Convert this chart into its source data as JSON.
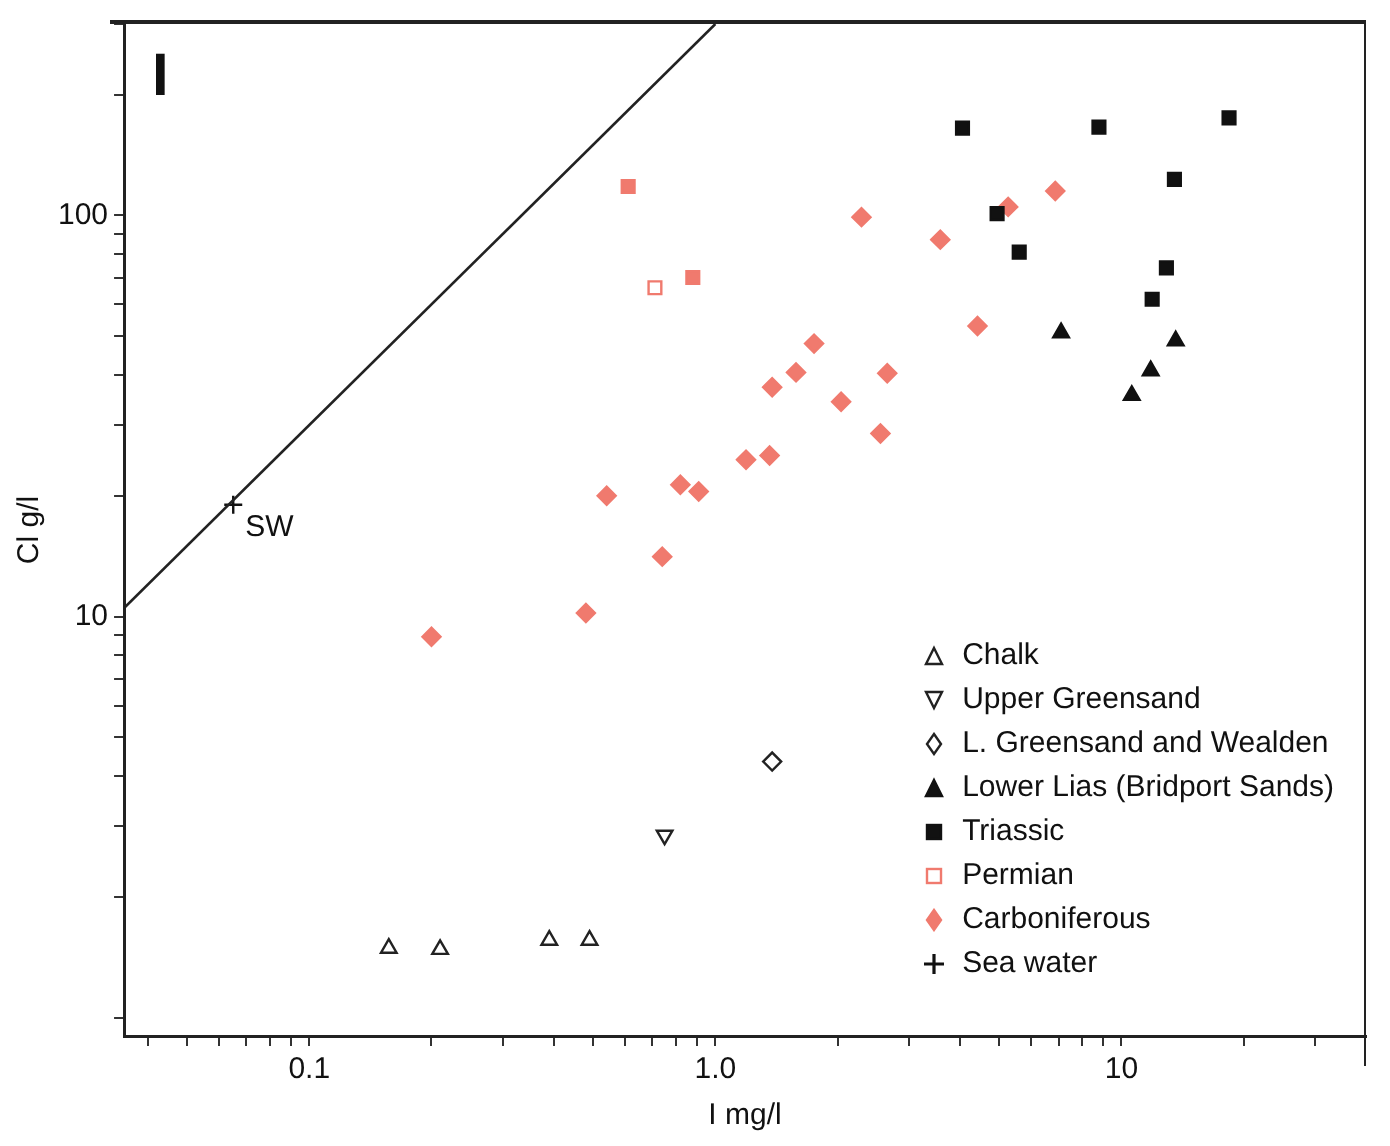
{
  "chart_data": {
    "type": "scatter",
    "xlabel": "I mg/l",
    "ylabel": "Cl g/l",
    "log": "xy",
    "grid": false,
    "legend": "bottom right",
    "xlim": [
      0.035,
      40
    ],
    "ylim": [
      0.9,
      300
    ],
    "xticks": [
      {
        "value": 0.04,
        "label": null
      },
      {
        "value": 0.05,
        "label": null
      },
      {
        "value": 0.06,
        "label": null
      },
      {
        "value": 0.07,
        "label": null
      },
      {
        "value": 0.08,
        "label": null
      },
      {
        "value": 0.09,
        "label": null
      },
      0.1,
      {
        "value": 0.2,
        "label": null
      },
      {
        "value": 0.3,
        "label": null
      },
      {
        "value": 0.4,
        "label": null
      },
      {
        "value": 0.5,
        "label": null
      },
      {
        "value": 0.6,
        "label": null
      },
      {
        "value": 0.7,
        "label": null
      },
      {
        "value": 0.8,
        "label": null
      },
      {
        "value": 0.9,
        "label": null
      },
      {
        "value": 1,
        "label": "1.0"
      },
      {
        "value": 2,
        "label": null
      },
      {
        "value": 3,
        "label": null
      },
      {
        "value": 4,
        "label": null
      },
      {
        "value": 5,
        "label": null
      },
      {
        "value": 6,
        "label": null
      },
      {
        "value": 7,
        "label": null
      },
      {
        "value": 8,
        "label": null
      },
      {
        "value": 9,
        "label": null
      },
      10,
      {
        "value": 20,
        "label": null
      },
      {
        "value": 30,
        "label": null
      }
    ],
    "yticks": [
      {
        "value": 1,
        "label": null
      },
      {
        "value": 2,
        "label": null
      },
      {
        "value": 3,
        "label": null
      },
      {
        "value": 4,
        "label": null
      },
      {
        "value": 5,
        "label": null
      },
      {
        "value": 6,
        "label": null
      },
      {
        "value": 7,
        "label": null
      },
      {
        "value": 8,
        "label": null
      },
      {
        "value": 9,
        "label": null
      },
      10,
      {
        "value": 20,
        "label": null
      },
      {
        "value": 30,
        "label": null
      },
      {
        "value": 40,
        "label": null
      },
      {
        "value": 50,
        "label": null
      },
      {
        "value": 60,
        "label": null
      },
      {
        "value": 70,
        "label": null
      },
      {
        "value": 80,
        "label": null
      },
      {
        "value": 90,
        "label": null
      },
      100,
      {
        "value": 200,
        "label": null
      },
      {
        "value": 300,
        "label": null
      }
    ],
    "annotations": [
      "I",
      {
        "text": "SW",
        "x": 0.065,
        "y": 19
      }
    ],
    "series": [
      {
        "type": "line",
        "color": "#222222",
        "marker": "none",
        "x": [
          0.035,
          1.0
        ],
        "values": [
          10.5,
          300
        ]
      },
      {
        "name": "Chalk",
        "color": "#222222",
        "marker": "triangle-open",
        "x": [
          0.157,
          0.21,
          0.39,
          0.49
        ],
        "values": [
          1.49,
          1.48,
          1.56,
          1.56
        ]
      },
      {
        "name": "Upper Greensand",
        "color": "#222222",
        "marker": "triangle-down-open",
        "x": [
          0.75
        ],
        "values": [
          2.85
        ]
      },
      {
        "name": "L. Greensand and Wealden",
        "color": "#222222",
        "marker": "diamond-open",
        "x": [
          1.38
        ],
        "values": [
          4.35
        ]
      },
      {
        "name": "Lower Lias (Bridport Sands)",
        "color": "#111111",
        "marker": "triangle",
        "x": [
          7.1,
          13.6,
          11.8,
          10.6
        ],
        "values": [
          51,
          48.7,
          41,
          35.6
        ]
      },
      {
        "name": "Triassic",
        "color": "#111111",
        "marker": "square",
        "x": [
          4.06,
          8.8,
          18.4,
          13.5,
          4.94,
          5.6,
          12.9,
          11.9
        ],
        "values": [
          165,
          166,
          175,
          123,
          101,
          81,
          74,
          61.8
        ]
      },
      {
        "color": "#f07a6e",
        "marker": "square",
        "x": [
          0.61,
          0.88
        ],
        "values": [
          118,
          70
        ]
      },
      {
        "name": "Permian",
        "color": "#f07a6e",
        "marker": "square-open",
        "x": [
          0.71
        ],
        "values": [
          66
        ]
      },
      {
        "name": "Carboniferous",
        "color": "#f07a6e",
        "marker": "diamond",
        "x": [
          0.2,
          0.48,
          0.54,
          0.74,
          0.82,
          0.91,
          1.19,
          1.36,
          1.38,
          1.58,
          1.75,
          2.04,
          2.29,
          2.55,
          2.65,
          3.58,
          4.42,
          5.26,
          6.87
        ],
        "values": [
          8.9,
          10.2,
          20,
          14.1,
          21.3,
          20.5,
          24.6,
          25.2,
          37.3,
          40.6,
          47.9,
          34.3,
          99,
          28.6,
          40.4,
          87,
          53,
          105,
          115
        ]
      },
      {
        "name": "Sea water",
        "color": "#111111",
        "marker": "cross",
        "x": [
          0.065
        ],
        "values": [
          19
        ]
      }
    ]
  }
}
